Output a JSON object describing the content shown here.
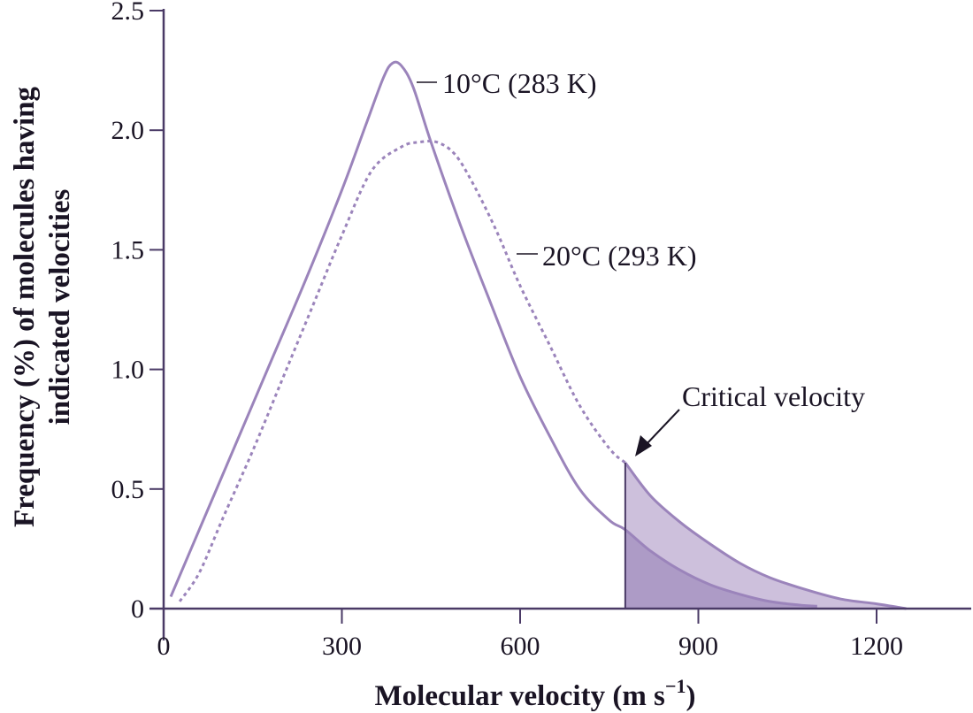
{
  "chart_data": {
    "type": "line",
    "title": "",
    "xlabel": "Molecular velocity (m s",
    "xlabel_sup": "−1",
    "xlabel_close": ")",
    "ylabel_line1": "Frequency (%) of molecules having",
    "ylabel_line2": "indicated velocities",
    "xlim": [
      0,
      1340
    ],
    "ylim": [
      0,
      2.5
    ],
    "xticks": [
      0,
      300,
      600,
      900,
      1200
    ],
    "xtick_labels": [
      "0",
      "300",
      "600",
      "900",
      "1200"
    ],
    "yticks": [
      0,
      0.5,
      1.0,
      1.5,
      2.0,
      2.5
    ],
    "ytick_labels": [
      "0",
      "0.5",
      "1.0",
      "1.5",
      "2.0",
      "2.5"
    ],
    "grid": false,
    "colors": {
      "axis": "#4a3a66",
      "curve": "#9b84bb",
      "shade_light": "#cdc0dc",
      "shade_dark": "#ad9bc6",
      "text": "#1a1424"
    },
    "series": [
      {
        "name": "10°C (283 K)",
        "style": "solid",
        "x": [
          12,
          60,
          120,
          180,
          240,
          300,
          340,
          370,
          385,
          400,
          420,
          450,
          500,
          550,
          600,
          650,
          700,
          750,
          777,
          820,
          870,
          920,
          970,
          1020,
          1070,
          1100
        ],
        "y": [
          0.05,
          0.33,
          0.68,
          1.03,
          1.38,
          1.75,
          2.02,
          2.22,
          2.28,
          2.27,
          2.18,
          1.95,
          1.6,
          1.28,
          0.97,
          0.72,
          0.5,
          0.37,
          0.33,
          0.24,
          0.16,
          0.1,
          0.06,
          0.03,
          0.015,
          0.01
        ]
      },
      {
        "name": "20°C (293 K)",
        "style": "dotted",
        "x": [
          27,
          60,
          100,
          150,
          200,
          250,
          300,
          350,
          400,
          430,
          460,
          490,
          520,
          560,
          600,
          650,
          700,
          750,
          777,
          820,
          870,
          920,
          970,
          1020,
          1080,
          1140,
          1200,
          1250
        ],
        "y": [
          0.03,
          0.15,
          0.38,
          0.66,
          0.96,
          1.26,
          1.56,
          1.83,
          1.93,
          1.95,
          1.95,
          1.9,
          1.78,
          1.58,
          1.35,
          1.1,
          0.85,
          0.67,
          0.61,
          0.47,
          0.36,
          0.27,
          0.19,
          0.13,
          0.08,
          0.04,
          0.02,
          0.0
        ]
      }
    ],
    "critical_velocity": 777,
    "annotations": [
      {
        "text": "10°C (283 K)",
        "x": 420,
        "y": 2.2
      },
      {
        "text": "20°C (293 K)",
        "x": 590,
        "y": 1.5
      },
      {
        "text": "Critical velocity",
        "x": 870,
        "y": 0.9
      }
    ],
    "legend": "none"
  }
}
